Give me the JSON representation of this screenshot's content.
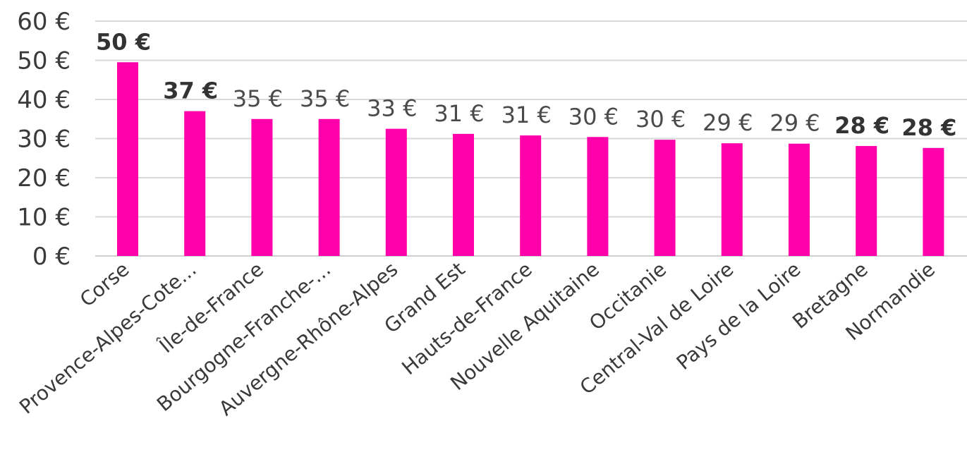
{
  "chart_data": {
    "type": "bar",
    "categories": [
      "Corse",
      "Provence-Alpes-Cote...",
      "Île-de-France",
      "Bourgogne-Franche-...",
      "Auvergne-Rhône-Alpes",
      "Grand Est",
      "Hauts-de-France",
      "Nouvelle Aquitaine",
      "Occitanie",
      "Central-Val de Loire",
      "Pays de la Loire",
      "Bretagne",
      "Normandie"
    ],
    "values": [
      49.5,
      37,
      35,
      35,
      32.5,
      31.2,
      30.8,
      30.4,
      29.7,
      28.8,
      28.7,
      28.1,
      27.6
    ],
    "value_labels": [
      "50 €",
      "37 €",
      "35 €",
      "35 €",
      "33 €",
      "31 €",
      "31 €",
      "30 €",
      "30 €",
      "29 €",
      "29 €",
      "28 €",
      "28 €"
    ],
    "bold_labels": [
      true,
      true,
      false,
      false,
      false,
      false,
      false,
      false,
      false,
      false,
      false,
      true,
      true
    ],
    "ylim": [
      0,
      60
    ],
    "yticks": [
      0,
      10,
      20,
      30,
      40,
      50,
      60
    ],
    "ytick_labels": [
      "0 €",
      "10 €",
      "20 €",
      "30 €",
      "40 €",
      "50 €",
      "60 €"
    ],
    "grid": true,
    "bar_color": "#ff00aa"
  }
}
